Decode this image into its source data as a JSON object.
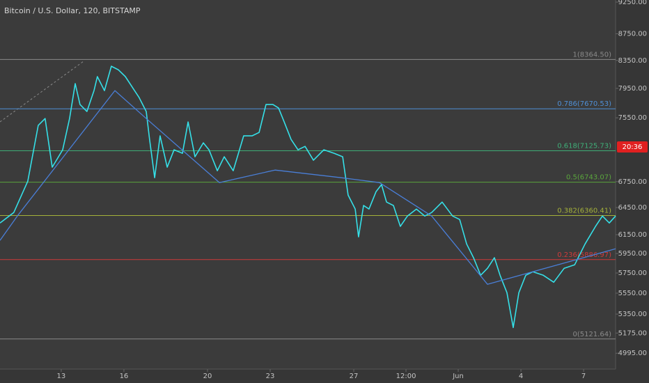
{
  "chart_data": {
    "type": "line",
    "title": "Bitcoin / U.S. Dollar, 120, BITSTAMP",
    "countdown": "20:36",
    "log_scale": true,
    "xlim": [
      10.07,
      39.53
    ],
    "xticks": [
      13,
      16,
      20,
      23,
      27,
      {
        "value": 29.5,
        "label": "12:00"
      },
      {
        "value": 32,
        "label": "Jun"
      },
      {
        "value": 35,
        "label": "4"
      },
      {
        "value": 38,
        "label": "7"
      }
    ],
    "ylim": [
      4858,
      9284
    ],
    "yticks": [
      {
        "value": 9250,
        "label": "9250.00"
      },
      {
        "value": 8750,
        "label": "8750.00"
      },
      {
        "value": 8350,
        "label": "8350.00"
      },
      {
        "value": 7950,
        "label": "7950.00"
      },
      {
        "value": 7550,
        "label": "7550.00"
      },
      {
        "value": 6750,
        "label": "6750.00"
      },
      {
        "value": 6450,
        "label": "6450.00"
      },
      {
        "value": 6150,
        "label": "6150.00"
      },
      {
        "value": 5950,
        "label": "5950.00"
      },
      {
        "value": 5750,
        "label": "5750.00"
      },
      {
        "value": 5550,
        "label": "5550.00"
      },
      {
        "value": 5350,
        "label": "5350.00"
      },
      {
        "value": 5175,
        "label": "5175.00"
      },
      {
        "value": 4995,
        "label": "4995.00"
      }
    ],
    "fib_levels": [
      {
        "price": 8364.5,
        "label": "1(8364.50)",
        "color": "#8a8a8a"
      },
      {
        "price": 7670.53,
        "label": "0.786(7670.53)",
        "color": "#4f8fd6"
      },
      {
        "price": 7125.73,
        "label": "0.618(7125.73)",
        "color": "#3fae78"
      },
      {
        "price": 6743.07,
        "label": "0.5(6743.07)",
        "color": "#5aa53c"
      },
      {
        "price": 6360.41,
        "label": "0.382(6360.41)",
        "color": "#a5b23a"
      },
      {
        "price": 5886.97,
        "label": "0.236(5886.97)",
        "color": "#d03a3a"
      },
      {
        "price": 5121.64,
        "label": "0(5121.64)",
        "color": "#8a8a8a"
      }
    ],
    "series": [
      {
        "color": "#35e0e8",
        "x": [
          10.07,
          10.73,
          11.4,
          11.9,
          12.23,
          12.57,
          13.07,
          13.4,
          13.67,
          13.9,
          14.23,
          14.57,
          14.73,
          15.07,
          15.4,
          15.73,
          16.07,
          16.4,
          16.73,
          17.07,
          17.23,
          17.47,
          17.73,
          18.07,
          18.4,
          18.8,
          19.07,
          19.4,
          19.8,
          20.07,
          20.47,
          20.8,
          21.23,
          21.73,
          22.13,
          22.47,
          22.8,
          23.13,
          23.4,
          23.67,
          24,
          24.33,
          24.67,
          25.07,
          25.57,
          26.07,
          26.47,
          26.73,
          27.07,
          27.23,
          27.47,
          27.73,
          28.07,
          28.33,
          28.57,
          28.9,
          29.23,
          29.57,
          30,
          30.4,
          30.73,
          31.23,
          31.73,
          32.07,
          32.4,
          32.73,
          33.07,
          33.4,
          33.73,
          34,
          34.33,
          34.63,
          34.9,
          35.23,
          35.57,
          36.07,
          36.57,
          37.07,
          37.57,
          38.07,
          38.57,
          38.9,
          39.23,
          39.53
        ],
        "values": [
          6278,
          6394,
          6755,
          7450,
          7541,
          6923,
          7138,
          7541,
          8017,
          7728,
          7634,
          7919,
          8116,
          7919,
          8265,
          8215,
          8116,
          7968,
          7823,
          7634,
          7269,
          6797,
          7315,
          6923,
          7138,
          7094,
          7496,
          7051,
          7226,
          7138,
          6880,
          7051,
          6880,
          7315,
          7315,
          7359,
          7728,
          7728,
          7681,
          7496,
          7269,
          7138,
          7181,
          7008,
          7138,
          7094,
          7051,
          6593,
          6433,
          6127,
          6473,
          6433,
          6633,
          6715,
          6512,
          6473,
          6240,
          6355,
          6433,
          6355,
          6394,
          6512,
          6355,
          6316,
          6051,
          5906,
          5727,
          5798,
          5906,
          5727,
          5555,
          5225,
          5555,
          5727,
          5763,
          5727,
          5658,
          5798,
          5833,
          6051,
          6240,
          6355,
          6278,
          6355
        ]
      },
      {
        "color": "#4a7fd8",
        "x": [
          10.07,
          10.9,
          15.57,
          17.07,
          20.57,
          23.23,
          26.4,
          28.23,
          30.73,
          33.4,
          39.53
        ],
        "values": [
          6089,
          6355,
          7919,
          7541,
          6739,
          6889,
          6797,
          6739,
          6355,
          5637,
          6000
        ]
      }
    ]
  }
}
